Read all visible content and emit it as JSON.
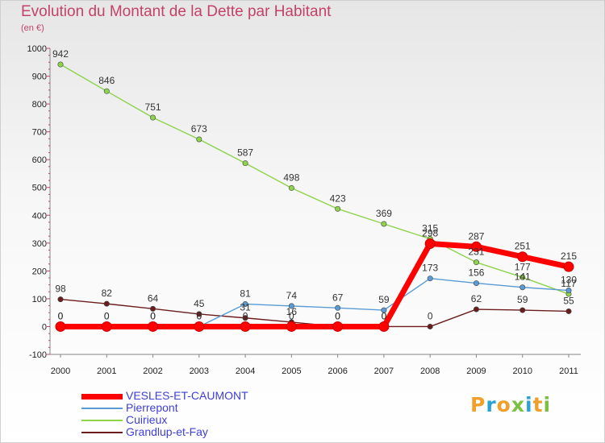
{
  "chart_data": {
    "type": "line",
    "title": "Evolution du Montant de la Dette par Habitant",
    "ylabel": "(en €)",
    "xlabel": "",
    "categories": [
      "2000",
      "2001",
      "2002",
      "2003",
      "2004",
      "2005",
      "2006",
      "2007",
      "2008",
      "2009",
      "2010",
      "2011"
    ],
    "ylim": [
      -100,
      1000
    ],
    "y_ticks": [
      "-100",
      "0",
      "100",
      "200",
      "300",
      "400",
      "500",
      "600",
      "700",
      "800",
      "900",
      "1000"
    ],
    "grid": false,
    "legend_position": "bottom-left",
    "series": [
      {
        "name": "VESLES-ET-CAUMONT",
        "color": "#ff0000",
        "values": [
          0,
          0,
          0,
          0,
          0,
          0,
          0,
          0,
          298,
          287,
          251,
          215
        ]
      },
      {
        "name": "Pierrepont",
        "color": "#5b9bd5",
        "values": [
          0,
          0,
          0,
          0,
          81,
          74,
          67,
          59,
          173,
          156,
          141,
          130
        ]
      },
      {
        "name": "Cuirieux",
        "color": "#8dd34c",
        "values": [
          942,
          846,
          751,
          673,
          587,
          498,
          423,
          369,
          315,
          231,
          177,
          117
        ]
      },
      {
        "name": "Grandlup-et-Fay",
        "color": "#6b1d1d",
        "values": [
          98,
          82,
          64,
          45,
          31,
          16,
          0,
          0,
          0,
          62,
          59,
          55
        ]
      }
    ]
  },
  "logo": {
    "text": "Proxiti"
  }
}
